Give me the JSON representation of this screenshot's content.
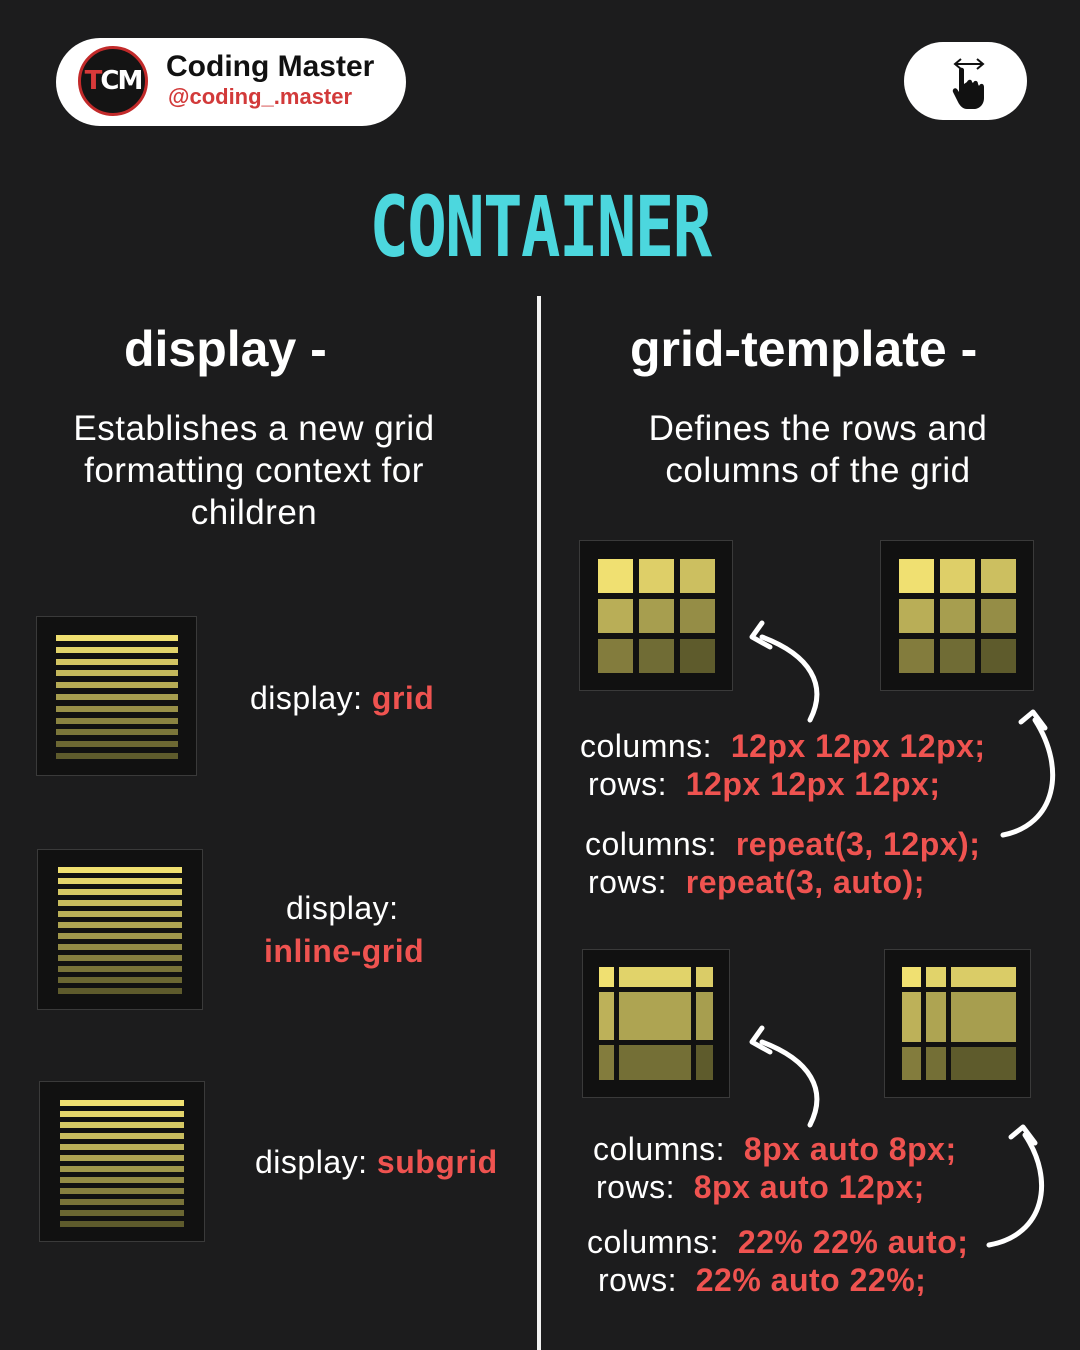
{
  "header": {
    "brand_name": "Coding Master",
    "handle": "@coding_.master",
    "logo_letters": "TCM"
  },
  "title": "CONTAINER",
  "left": {
    "heading": "display -",
    "description": [
      "Establishes a new grid",
      "formatting context for",
      "children"
    ],
    "examples": [
      {
        "prefix": "display: ",
        "value": "grid"
      },
      {
        "prefix": "display:",
        "value": "inline-grid"
      },
      {
        "prefix": "display: ",
        "value": "subgrid"
      }
    ]
  },
  "right": {
    "heading": "grid-template -",
    "description": [
      "Defines the rows and",
      "columns of the grid"
    ],
    "block1": {
      "line1_label": "columns:",
      "line1_value": "12px 12px 12px;",
      "line2_label": "rows:",
      "line2_value": "12px 12px 12px;",
      "line3_label": "columns:",
      "line3_value": "repeat(3, 12px);",
      "line4_label": "rows:",
      "line4_value": "repeat(3, auto);"
    },
    "block2": {
      "line1_label": "columns:",
      "line1_value": "8px auto 8px;",
      "line2_label": "rows:",
      "line2_value": "8px auto 12px;",
      "line3_label": "columns:",
      "line3_value": "22% 22% auto;",
      "line4_label": "rows:",
      "line4_value": "22% auto 22%;"
    }
  },
  "colors": {
    "background": "#1c1c1d",
    "title": "#4cd7de",
    "value_red": "#ef5350",
    "gradient_light": "#f0e071",
    "gradient_dark": "#5e5b2c"
  },
  "icons": [
    "swipe-hand-icon",
    "curved-arrow-icon"
  ]
}
